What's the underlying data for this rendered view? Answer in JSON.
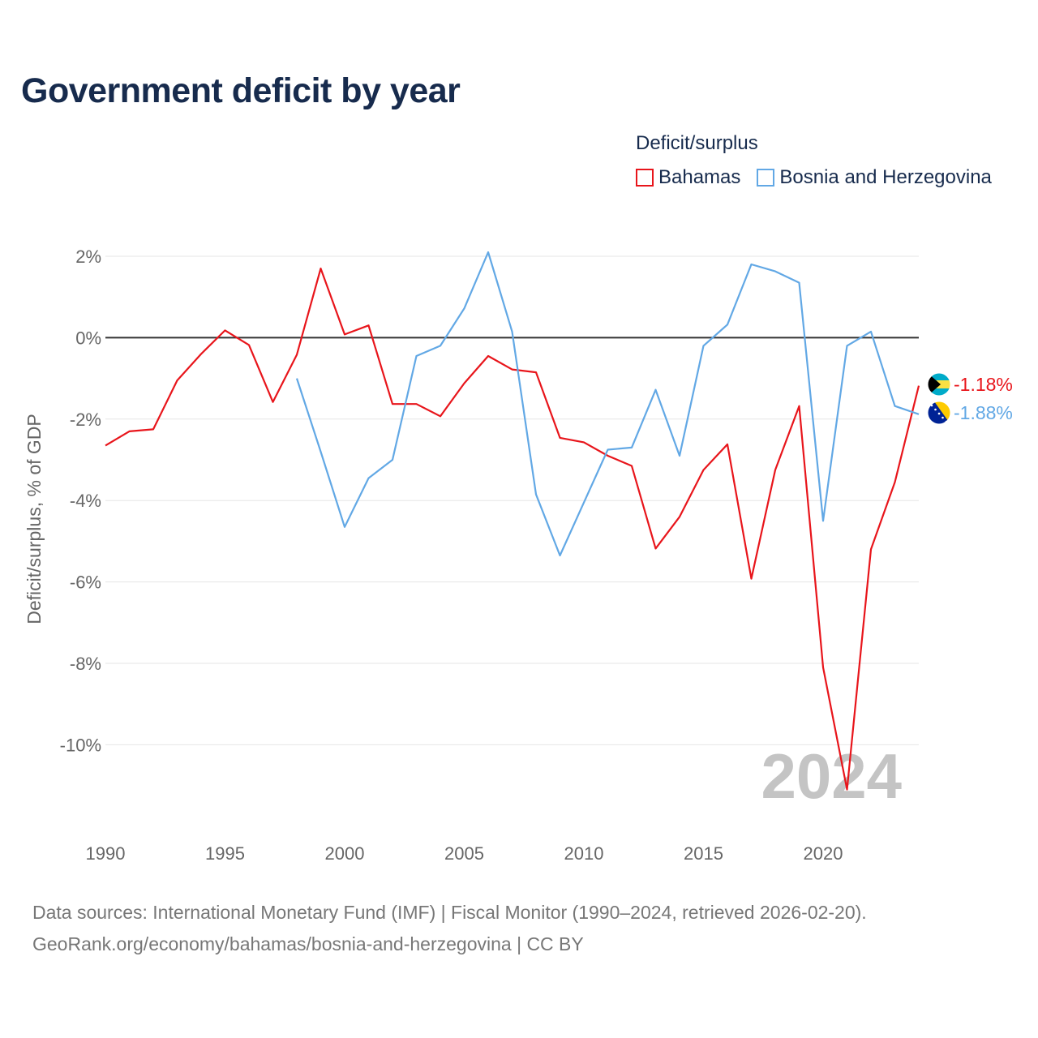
{
  "title": "Government deficit by year",
  "legend": {
    "title": "Deficit/surplus",
    "items": [
      {
        "label": "Bahamas",
        "color": "#e8151b"
      },
      {
        "label": "Bosnia and Herzegovina",
        "color": "#62a8e5"
      }
    ]
  },
  "source": {
    "line1": "Data sources: International Monetary Fund (IMF) | Fiscal Monitor (1990–2024, retrieved 2026-02-20).",
    "line2": "GeoRank.org/economy/bahamas/bosnia-and-herzegovina | CC BY"
  },
  "chart_data": {
    "type": "line",
    "title": "Government deficit by year",
    "xlabel": "",
    "ylabel": "Deficit/surplus, % of GDP",
    "xlim": [
      1990,
      2024
    ],
    "ylim": [
      -12,
      2.4
    ],
    "x_ticks": [
      1990,
      1995,
      2000,
      2005,
      2010,
      2015,
      2020
    ],
    "y_ticks": [
      2,
      0,
      -2,
      -4,
      -6,
      -8,
      -10
    ],
    "y_tick_labels": [
      "2%",
      "0%",
      "-2%",
      "-4%",
      "-6%",
      "-8%",
      "-10%"
    ],
    "watermark": "2024",
    "series": [
      {
        "name": "Bahamas",
        "color": "#e8151b",
        "end_label": "-1.18%",
        "x": [
          1990,
          1991,
          1992,
          1993,
          1994,
          1995,
          1996,
          1997,
          1998,
          1999,
          2000,
          2001,
          2002,
          2003,
          2004,
          2005,
          2006,
          2007,
          2008,
          2009,
          2010,
          2011,
          2012,
          2013,
          2014,
          2015,
          2016,
          2017,
          2018,
          2019,
          2020,
          2021,
          2022,
          2023,
          2024
        ],
        "values": [
          -2.65,
          -2.3,
          -2.25,
          -1.05,
          -0.4,
          0.18,
          -0.18,
          -1.58,
          -0.42,
          1.7,
          0.08,
          0.3,
          -1.63,
          -1.63,
          -1.93,
          -1.12,
          -0.45,
          -0.78,
          -0.85,
          -2.46,
          -2.57,
          -2.9,
          -3.15,
          -5.18,
          -4.4,
          -3.25,
          -2.62,
          -5.92,
          -3.25,
          -1.68,
          -8.1,
          -11.1,
          -5.2,
          -3.55,
          -1.18
        ]
      },
      {
        "name": "Bosnia and Herzegovina",
        "color": "#62a8e5",
        "end_label": "-1.88%",
        "x": [
          1998,
          1999,
          2000,
          2001,
          2002,
          2003,
          2004,
          2005,
          2006,
          2007,
          2008,
          2009,
          2010,
          2011,
          2012,
          2013,
          2014,
          2015,
          2016,
          2017,
          2018,
          2019,
          2020,
          2021,
          2022,
          2023,
          2024
        ],
        "values": [
          -1.0,
          -2.8,
          -4.65,
          -3.45,
          -3.0,
          -0.45,
          -0.2,
          0.72,
          2.1,
          0.15,
          -3.85,
          -5.35,
          -4.05,
          -2.75,
          -2.7,
          -1.28,
          -2.9,
          -0.2,
          0.32,
          1.8,
          1.63,
          1.35,
          -4.5,
          -0.2,
          0.15,
          -1.68,
          -1.88
        ]
      }
    ]
  }
}
